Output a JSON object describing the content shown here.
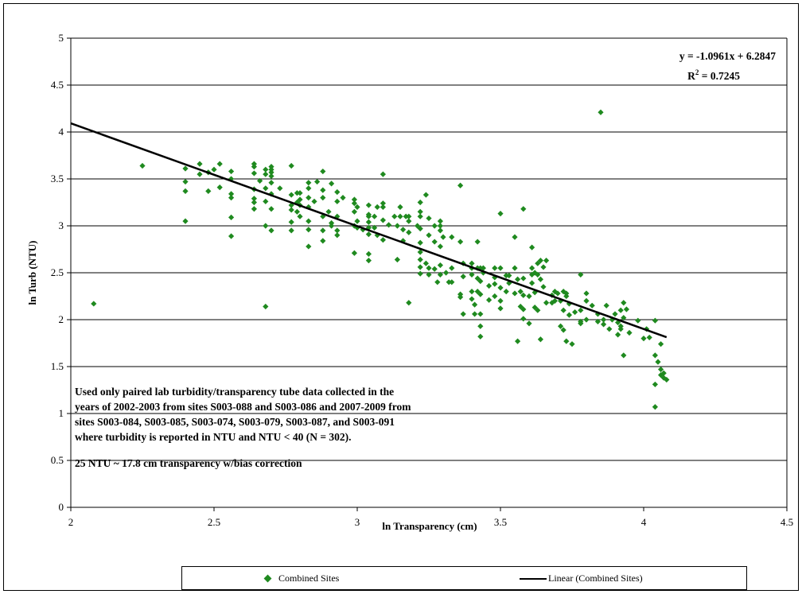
{
  "chart_data": {
    "type": "scatter",
    "xlabel": "ln Transparency (cm)",
    "ylabel": "ln Turb (NTU)",
    "xlim": [
      2,
      4.5
    ],
    "ylim": [
      0,
      5
    ],
    "xticks": [
      "2",
      "2.5",
      "3",
      "3.5",
      "4",
      "4.5"
    ],
    "yticks": [
      "0",
      "0.5",
      "1",
      "1.5",
      "2",
      "2.5",
      "3",
      "3.5",
      "4",
      "4.5",
      "5"
    ],
    "grid": "horizontal",
    "legend_position": "bottom",
    "series": [
      {
        "name": "Combined Sites",
        "color": "#1f8a1f",
        "marker": "diamond",
        "points": [
          [
            2.08,
            2.17
          ],
          [
            2.25,
            3.64
          ],
          [
            2.4,
            3.61
          ],
          [
            2.4,
            3.47
          ],
          [
            2.4,
            3.37
          ],
          [
            2.4,
            3.05
          ],
          [
            2.45,
            3.66
          ],
          [
            2.45,
            3.55
          ],
          [
            2.48,
            3.37
          ],
          [
            2.48,
            3.57
          ],
          [
            2.5,
            3.6
          ],
          [
            2.52,
            3.66
          ],
          [
            2.52,
            3.41
          ],
          [
            2.56,
            3.58
          ],
          [
            2.56,
            3.5
          ],
          [
            2.56,
            3.34
          ],
          [
            2.56,
            3.3
          ],
          [
            2.56,
            3.09
          ],
          [
            2.56,
            2.89
          ],
          [
            2.64,
            3.66
          ],
          [
            2.64,
            3.63
          ],
          [
            2.64,
            3.56
          ],
          [
            2.64,
            3.39
          ],
          [
            2.64,
            3.29
          ],
          [
            2.64,
            3.25
          ],
          [
            2.64,
            3.18
          ],
          [
            2.66,
            3.48
          ],
          [
            2.68,
            3.6
          ],
          [
            2.68,
            3.55
          ],
          [
            2.68,
            3.4
          ],
          [
            2.68,
            3.26
          ],
          [
            2.68,
            3.0
          ],
          [
            2.68,
            2.14
          ],
          [
            2.7,
            3.63
          ],
          [
            2.7,
            3.6
          ],
          [
            2.7,
            3.57
          ],
          [
            2.7,
            3.53
          ],
          [
            2.7,
            3.46
          ],
          [
            2.7,
            3.34
          ],
          [
            2.7,
            3.18
          ],
          [
            2.7,
            2.95
          ],
          [
            2.73,
            3.4
          ],
          [
            2.77,
            3.64
          ],
          [
            2.77,
            3.33
          ],
          [
            2.77,
            3.22
          ],
          [
            2.77,
            3.17
          ],
          [
            2.77,
            3.04
          ],
          [
            2.77,
            2.95
          ],
          [
            2.79,
            3.35
          ],
          [
            2.79,
            3.25
          ],
          [
            2.79,
            3.15
          ],
          [
            2.8,
            3.35
          ],
          [
            2.8,
            3.28
          ],
          [
            2.8,
            3.22
          ],
          [
            2.8,
            3.1
          ],
          [
            2.83,
            3.46
          ],
          [
            2.83,
            3.4
          ],
          [
            2.83,
            3.3
          ],
          [
            2.83,
            3.2
          ],
          [
            2.83,
            3.05
          ],
          [
            2.83,
            2.96
          ],
          [
            2.83,
            2.78
          ],
          [
            2.85,
            3.26
          ],
          [
            2.86,
            3.47
          ],
          [
            2.88,
            3.58
          ],
          [
            2.88,
            3.38
          ],
          [
            2.88,
            3.3
          ],
          [
            2.88,
            3.1
          ],
          [
            2.88,
            2.95
          ],
          [
            2.88,
            2.84
          ],
          [
            2.9,
            3.15
          ],
          [
            2.91,
            3.45
          ],
          [
            2.91,
            3.03
          ],
          [
            2.91,
            3.0
          ],
          [
            2.93,
            3.36
          ],
          [
            2.93,
            3.26
          ],
          [
            2.93,
            3.1
          ],
          [
            2.93,
            2.95
          ],
          [
            2.93,
            2.9
          ],
          [
            2.95,
            3.3
          ],
          [
            2.99,
            3.28
          ],
          [
            2.99,
            3.24
          ],
          [
            2.99,
            3.15
          ],
          [
            2.99,
            3.0
          ],
          [
            2.99,
            2.71
          ],
          [
            3.0,
            3.2
          ],
          [
            3.0,
            3.05
          ],
          [
            3.0,
            2.98
          ],
          [
            3.02,
            2.96
          ],
          [
            3.04,
            3.22
          ],
          [
            3.04,
            3.12
          ],
          [
            3.04,
            3.1
          ],
          [
            3.04,
            3.04
          ],
          [
            3.04,
            2.98
          ],
          [
            3.04,
            2.91
          ],
          [
            3.04,
            2.7
          ],
          [
            3.04,
            2.63
          ],
          [
            3.06,
            3.1
          ],
          [
            3.06,
            2.98
          ],
          [
            3.07,
            3.2
          ],
          [
            3.07,
            2.9
          ],
          [
            3.09,
            3.55
          ],
          [
            3.09,
            3.24
          ],
          [
            3.09,
            3.2
          ],
          [
            3.09,
            3.06
          ],
          [
            3.09,
            2.85
          ],
          [
            3.11,
            3.01
          ],
          [
            3.13,
            3.1
          ],
          [
            3.14,
            3.0
          ],
          [
            3.14,
            2.64
          ],
          [
            3.15,
            3.1
          ],
          [
            3.15,
            3.2
          ],
          [
            3.16,
            2.96
          ],
          [
            3.16,
            2.84
          ],
          [
            3.17,
            3.1
          ],
          [
            3.18,
            3.1
          ],
          [
            3.18,
            3.05
          ],
          [
            3.18,
            2.93
          ],
          [
            3.18,
            2.18
          ],
          [
            3.21,
            3.0
          ],
          [
            3.22,
            3.25
          ],
          [
            3.22,
            3.15
          ],
          [
            3.22,
            3.1
          ],
          [
            3.22,
            2.97
          ],
          [
            3.22,
            2.82
          ],
          [
            3.22,
            2.72
          ],
          [
            3.22,
            2.64
          ],
          [
            3.22,
            2.56
          ],
          [
            3.22,
            2.49
          ],
          [
            3.24,
            3.33
          ],
          [
            3.24,
            2.6
          ],
          [
            3.25,
            3.08
          ],
          [
            3.25,
            2.9
          ],
          [
            3.25,
            2.55
          ],
          [
            3.25,
            2.48
          ],
          [
            3.27,
            3.0
          ],
          [
            3.27,
            2.83
          ],
          [
            3.27,
            2.54
          ],
          [
            3.28,
            2.4
          ],
          [
            3.29,
            3.05
          ],
          [
            3.29,
            3.0
          ],
          [
            3.29,
            2.95
          ],
          [
            3.29,
            2.78
          ],
          [
            3.29,
            2.58
          ],
          [
            3.29,
            2.48
          ],
          [
            3.3,
            2.88
          ],
          [
            3.31,
            2.5
          ],
          [
            3.32,
            2.4
          ],
          [
            3.33,
            2.88
          ],
          [
            3.33,
            2.55
          ],
          [
            3.33,
            2.4
          ],
          [
            3.36,
            3.43
          ],
          [
            3.36,
            2.83
          ],
          [
            3.36,
            2.27
          ],
          [
            3.36,
            2.24
          ],
          [
            3.37,
            2.6
          ],
          [
            3.37,
            2.46
          ],
          [
            3.37,
            2.06
          ],
          [
            3.4,
            2.6
          ],
          [
            3.4,
            2.55
          ],
          [
            3.4,
            2.48
          ],
          [
            3.4,
            2.3
          ],
          [
            3.4,
            2.22
          ],
          [
            3.41,
            2.16
          ],
          [
            3.41,
            2.06
          ],
          [
            3.42,
            2.83
          ],
          [
            3.42,
            2.55
          ],
          [
            3.42,
            2.44
          ],
          [
            3.42,
            2.3
          ],
          [
            3.43,
            2.55
          ],
          [
            3.43,
            2.41
          ],
          [
            3.43,
            2.27
          ],
          [
            3.43,
            2.06
          ],
          [
            3.43,
            1.93
          ],
          [
            3.43,
            1.82
          ],
          [
            3.44,
            2.55
          ],
          [
            3.44,
            2.5
          ],
          [
            3.46,
            2.36
          ],
          [
            3.46,
            2.21
          ],
          [
            3.48,
            2.55
          ],
          [
            3.48,
            2.45
          ],
          [
            3.48,
            2.38
          ],
          [
            3.48,
            2.25
          ],
          [
            3.5,
            2.55
          ],
          [
            3.5,
            2.34
          ],
          [
            3.5,
            2.2
          ],
          [
            3.5,
            3.13
          ],
          [
            3.5,
            2.12
          ],
          [
            3.52,
            2.47
          ],
          [
            3.52,
            2.3
          ],
          [
            3.53,
            2.47
          ],
          [
            3.53,
            2.39
          ],
          [
            3.55,
            2.88
          ],
          [
            3.55,
            2.55
          ],
          [
            3.55,
            2.28
          ],
          [
            3.56,
            2.43
          ],
          [
            3.56,
            1.77
          ],
          [
            3.57,
            2.3
          ],
          [
            3.57,
            2.14
          ],
          [
            3.58,
            3.18
          ],
          [
            3.58,
            2.44
          ],
          [
            3.58,
            2.26
          ],
          [
            3.58,
            2.11
          ],
          [
            3.58,
            2.01
          ],
          [
            3.6,
            2.25
          ],
          [
            3.6,
            1.96
          ],
          [
            3.61,
            2.77
          ],
          [
            3.61,
            2.55
          ],
          [
            3.61,
            2.48
          ],
          [
            3.61,
            2.39
          ],
          [
            3.62,
            2.5
          ],
          [
            3.62,
            2.29
          ],
          [
            3.62,
            2.13
          ],
          [
            3.63,
            2.6
          ],
          [
            3.63,
            2.48
          ],
          [
            3.63,
            2.1
          ],
          [
            3.64,
            2.63
          ],
          [
            3.64,
            2.43
          ],
          [
            3.64,
            1.79
          ],
          [
            3.65,
            2.56
          ],
          [
            3.65,
            2.35
          ],
          [
            3.66,
            2.63
          ],
          [
            3.66,
            2.18
          ],
          [
            3.68,
            2.26
          ],
          [
            3.68,
            2.18
          ],
          [
            3.69,
            2.3
          ],
          [
            3.69,
            2.2
          ],
          [
            3.7,
            2.28
          ],
          [
            3.71,
            2.2
          ],
          [
            3.71,
            1.93
          ],
          [
            3.72,
            2.3
          ],
          [
            3.72,
            2.1
          ],
          [
            3.72,
            1.89
          ],
          [
            3.73,
            2.28
          ],
          [
            3.73,
            2.25
          ],
          [
            3.73,
            1.77
          ],
          [
            3.74,
            2.05
          ],
          [
            3.74,
            2.17
          ],
          [
            3.75,
            1.74
          ],
          [
            3.76,
            2.08
          ],
          [
            3.78,
            2.48
          ],
          [
            3.78,
            2.1
          ],
          [
            3.78,
            1.98
          ],
          [
            3.78,
            1.96
          ],
          [
            3.8,
            2.28
          ],
          [
            3.8,
            2.2
          ],
          [
            3.8,
            2.0
          ],
          [
            3.82,
            2.15
          ],
          [
            3.84,
            2.06
          ],
          [
            3.84,
            1.98
          ],
          [
            3.85,
            4.21
          ],
          [
            3.86,
            2.0
          ],
          [
            3.86,
            1.95
          ],
          [
            3.87,
            2.15
          ],
          [
            3.88,
            1.9
          ],
          [
            3.89,
            2.0
          ],
          [
            3.9,
            2.06
          ],
          [
            3.91,
            1.97
          ],
          [
            3.91,
            1.84
          ],
          [
            3.92,
            2.1
          ],
          [
            3.92,
            1.9
          ],
          [
            3.92,
            1.93
          ],
          [
            3.93,
            2.18
          ],
          [
            3.93,
            2.02
          ],
          [
            3.93,
            1.62
          ],
          [
            3.94,
            2.11
          ],
          [
            3.95,
            1.86
          ],
          [
            3.98,
            1.99
          ],
          [
            4.0,
            1.8
          ],
          [
            4.01,
            1.9
          ],
          [
            4.02,
            1.81
          ],
          [
            4.04,
            1.99
          ],
          [
            4.04,
            1.62
          ],
          [
            4.04,
            1.31
          ],
          [
            4.04,
            1.07
          ],
          [
            4.05,
            1.55
          ],
          [
            4.06,
            1.74
          ],
          [
            4.06,
            1.47
          ],
          [
            4.06,
            1.41
          ],
          [
            4.07,
            1.43
          ],
          [
            4.07,
            1.38
          ],
          [
            4.08,
            1.36
          ]
        ]
      },
      {
        "name": "Linear (Combined Sites)",
        "color": "#000000",
        "line": true,
        "slope": -1.0961,
        "intercept": 6.2847,
        "x_range": [
          2,
          4.08
        ]
      }
    ],
    "annotations": {
      "equation": "y = -1.0961x + 6.2847",
      "r2_label": "R",
      "r2_exp": "2",
      "r2_value": " = 0.7245",
      "note_lines": [
        "Used only paired lab turbidity/transparency tube data collected in the",
        "years of 2002-2003 from sites S003-088 and S003-086 and 2007-2009 from",
        "sites S003-084, S003-085, S003-074, S003-079, S003-087, and S003-091",
        "where turbidity is reported in NTU and NTU < 40 (N = 302)."
      ],
      "note2": "25 NTU  ~ 17.8 cm transparency w/bias correction"
    }
  }
}
